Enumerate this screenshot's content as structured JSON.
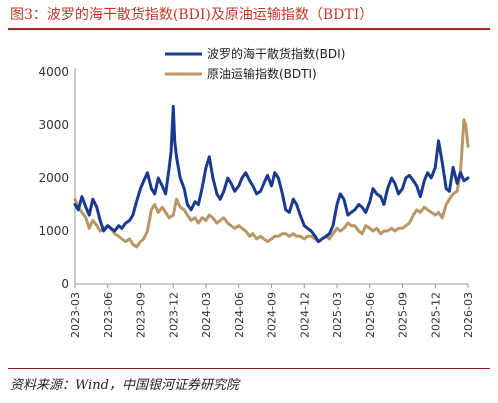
{
  "header": {
    "title": "图3：波罗的海干散货指数(BDI)及原油运输指数（BDTI）"
  },
  "footer": {
    "source": "资料来源：Wind，中国银河证券研究院"
  },
  "chart_data": {
    "type": "line",
    "title": "波罗的海干散货指数(BDI)及原油运输指数（BDTI）",
    "xlabel": "",
    "ylabel": "",
    "ylim": [
      0,
      4000
    ],
    "yticks": [
      0,
      1000,
      2000,
      3000,
      4000
    ],
    "xticks": [
      "2023-03",
      "2023-06",
      "2023-09",
      "2023-12",
      "2024-03",
      "2024-06",
      "2024-09",
      "2024-12",
      "2025-03",
      "2025-06",
      "2025-09",
      "2025-12",
      "2026-03"
    ],
    "xlim": [
      "2023-03",
      "2026-03"
    ],
    "grid": false,
    "legend": "top-center",
    "series": [
      {
        "name": "波罗的海干散货指数(BDI)",
        "color": "#1a3a8f",
        "x": [
          "2023-03",
          "2023-03-10",
          "2023-03-20",
          "2023-04",
          "2023-04-10",
          "2023-04-20",
          "2023-05",
          "2023-05-10",
          "2023-05-20",
          "2023-06",
          "2023-06-10",
          "2023-06-20",
          "2023-07",
          "2023-07-10",
          "2023-07-20",
          "2023-08",
          "2023-08-10",
          "2023-08-20",
          "2023-09",
          "2023-09-10",
          "2023-09-20",
          "2023-10",
          "2023-10-10",
          "2023-10-20",
          "2023-11",
          "2023-11-10",
          "2023-11-20",
          "2023-11-25",
          "2023-12",
          "2023-12-05",
          "2023-12-10",
          "2023-12-20",
          "2024-01",
          "2024-01-10",
          "2024-01-20",
          "2024-02",
          "2024-02-10",
          "2024-02-20",
          "2024-03",
          "2024-03-10",
          "2024-03-20",
          "2024-04",
          "2024-04-10",
          "2024-04-20",
          "2024-05",
          "2024-05-10",
          "2024-05-20",
          "2024-06",
          "2024-06-10",
          "2024-06-20",
          "2024-07",
          "2024-07-10",
          "2024-07-20",
          "2024-08",
          "2024-08-10",
          "2024-08-20",
          "2024-09",
          "2024-09-10",
          "2024-09-20",
          "2024-10",
          "2024-10-10",
          "2024-10-20",
          "2024-11",
          "2024-11-10",
          "2024-11-20",
          "2024-12",
          "2024-12-10",
          "2024-12-20",
          "2025-01",
          "2025-01-10",
          "2025-01-20",
          "2025-02",
          "2025-02-10",
          "2025-02-20",
          "2025-03",
          "2025-03-10",
          "2025-03-20",
          "2025-04",
          "2025-04-10",
          "2025-04-20",
          "2025-05",
          "2025-05-10",
          "2025-05-20",
          "2025-06",
          "2025-06-10",
          "2025-06-20",
          "2025-07",
          "2025-07-10",
          "2025-07-20",
          "2025-08",
          "2025-08-10",
          "2025-08-20",
          "2025-09",
          "2025-09-10",
          "2025-09-20",
          "2025-10",
          "2025-10-10",
          "2025-10-20",
          "2025-11",
          "2025-11-10",
          "2025-11-20",
          "2025-12",
          "2025-12-10",
          "2025-12-20",
          "2026-01",
          "2026-01-10",
          "2026-01-20",
          "2026-02",
          "2026-02-10",
          "2026-02-20",
          "2026-03"
        ],
        "values": [
          1500,
          1400,
          1650,
          1450,
          1300,
          1600,
          1450,
          1200,
          1000,
          1100,
          1050,
          1000,
          1100,
          1050,
          1150,
          1200,
          1300,
          1550,
          1800,
          1950,
          2100,
          1800,
          1700,
          2000,
          1850,
          1700,
          2200,
          2500,
          3350,
          2700,
          2400,
          2000,
          1800,
          1500,
          1400,
          1550,
          1500,
          1800,
          2200,
          2400,
          2000,
          1700,
          1600,
          1750,
          2000,
          1900,
          1750,
          1850,
          2000,
          2100,
          1950,
          1850,
          1700,
          1750,
          1900,
          2050,
          1850,
          2100,
          2000,
          1700,
          1400,
          1350,
          1600,
          1500,
          1300,
          1100,
          1050,
          1000,
          900,
          800,
          850,
          900,
          950,
          1100,
          1500,
          1700,
          1600,
          1300,
          1350,
          1400,
          1500,
          1450,
          1350,
          1550,
          1800,
          1700,
          1650,
          1500,
          1800,
          2000,
          1900,
          1700,
          1800,
          2000,
          2050,
          1950,
          1850,
          1650,
          1950,
          2100,
          2000,
          2200,
          2700,
          2300,
          1800,
          1750,
          2200,
          1900,
          2100,
          1950,
          2000
        ]
      },
      {
        "name": "原油运输指数(BDTI)",
        "color": "#b99766",
        "x": [
          "2023-03",
          "2023-03-10",
          "2023-03-20",
          "2023-04",
          "2023-04-10",
          "2023-04-20",
          "2023-05",
          "2023-05-10",
          "2023-05-20",
          "2023-06",
          "2023-06-10",
          "2023-06-20",
          "2023-07",
          "2023-07-10",
          "2023-07-20",
          "2023-08",
          "2023-08-10",
          "2023-08-20",
          "2023-09",
          "2023-09-10",
          "2023-09-20",
          "2023-10",
          "2023-10-10",
          "2023-10-20",
          "2023-11",
          "2023-11-10",
          "2023-11-20",
          "2023-12",
          "2023-12-10",
          "2023-12-20",
          "2024-01",
          "2024-01-10",
          "2024-01-20",
          "2024-02",
          "2024-02-10",
          "2024-02-20",
          "2024-03",
          "2024-03-10",
          "2024-03-20",
          "2024-04",
          "2024-04-10",
          "2024-04-20",
          "2024-05",
          "2024-05-10",
          "2024-05-20",
          "2024-06",
          "2024-06-10",
          "2024-06-20",
          "2024-07",
          "2024-07-10",
          "2024-07-20",
          "2024-08",
          "2024-08-10",
          "2024-08-20",
          "2024-09",
          "2024-09-10",
          "2024-09-20",
          "2024-10",
          "2024-10-10",
          "2024-10-20",
          "2024-11",
          "2024-11-10",
          "2024-11-20",
          "2024-12",
          "2024-12-10",
          "2024-12-20",
          "2025-01",
          "2025-01-10",
          "2025-01-20",
          "2025-02",
          "2025-02-10",
          "2025-02-20",
          "2025-03",
          "2025-03-10",
          "2025-03-20",
          "2025-04",
          "2025-04-10",
          "2025-04-20",
          "2025-05",
          "2025-05-10",
          "2025-05-20",
          "2025-06",
          "2025-06-10",
          "2025-06-20",
          "2025-07",
          "2025-07-10",
          "2025-07-20",
          "2025-08",
          "2025-08-10",
          "2025-08-20",
          "2025-09",
          "2025-09-10",
          "2025-09-20",
          "2025-10",
          "2025-10-10",
          "2025-10-20",
          "2025-11",
          "2025-11-10",
          "2025-11-20",
          "2025-12",
          "2025-12-10",
          "2025-12-20",
          "2026-01",
          "2026-01-10",
          "2026-01-20",
          "2026-02",
          "2026-02-10",
          "2026-02-20",
          "2026-02-25",
          "2026-03"
        ],
        "values": [
          1600,
          1450,
          1350,
          1250,
          1050,
          1200,
          1100,
          1000,
          1050,
          1100,
          1050,
          950,
          900,
          850,
          800,
          850,
          750,
          700,
          800,
          850,
          1000,
          1400,
          1500,
          1350,
          1450,
          1350,
          1250,
          1300,
          1600,
          1450,
          1400,
          1300,
          1200,
          1250,
          1150,
          1250,
          1200,
          1300,
          1250,
          1150,
          1200,
          1250,
          1150,
          1100,
          1050,
          1100,
          1050,
          1000,
          900,
          950,
          850,
          900,
          850,
          800,
          850,
          900,
          900,
          950,
          950,
          900,
          950,
          900,
          900,
          850,
          900,
          900,
          850,
          800,
          850,
          900,
          850,
          950,
          1050,
          1000,
          1050,
          1150,
          1100,
          1100,
          1000,
          950,
          1100,
          1050,
          1000,
          1050,
          950,
          1000,
          1000,
          1050,
          1000,
          1050,
          1050,
          1100,
          1150,
          1300,
          1400,
          1350,
          1450,
          1400,
          1350,
          1300,
          1350,
          1250,
          1500,
          1600,
          1700,
          1750,
          2100,
          3100,
          3000,
          2600
        ]
      }
    ]
  }
}
